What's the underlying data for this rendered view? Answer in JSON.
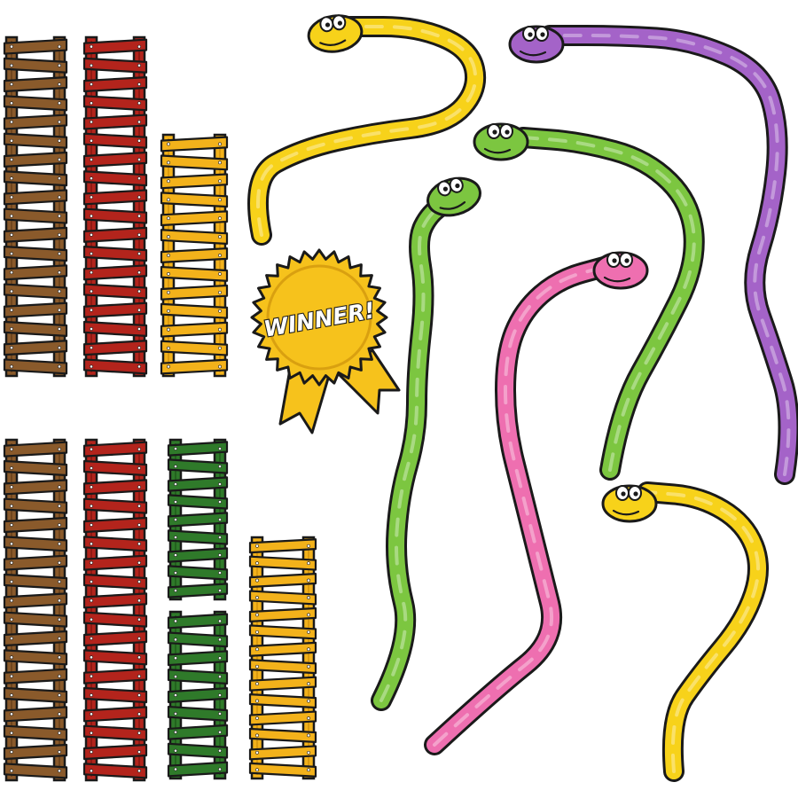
{
  "palette": {
    "outline": "#1a1a1a",
    "ladder_brown": "#8a5a2b",
    "ladder_brown_dark": "#5e3a17",
    "ladder_red": "#b3241c",
    "ladder_red_dark": "#7a130d",
    "ladder_yellow": "#f3b21b",
    "ladder_yellow_dark": "#c98a09",
    "ladder_green": "#2f7a2a",
    "ladder_green_dark": "#1c5218",
    "snake_yellow": "#f7d21a",
    "snake_purple": "#a463c8",
    "snake_green": "#7cc640",
    "snake_pink": "#ee6fb0",
    "badge_gold": "#f6c21c",
    "badge_gold_dark": "#d9a010"
  },
  "ladders": [
    {
      "name": "ladder-brown-top",
      "color": "brown",
      "rungs": 18
    },
    {
      "name": "ladder-red-top",
      "color": "red",
      "rungs": 18
    },
    {
      "name": "ladder-yellow-top",
      "color": "yellow",
      "rungs": 13
    },
    {
      "name": "ladder-brown-bottom",
      "color": "brown",
      "rungs": 18
    },
    {
      "name": "ladder-red-bottom",
      "color": "red",
      "rungs": 18
    },
    {
      "name": "ladder-green-bottom-upper",
      "color": "green",
      "rungs": 9
    },
    {
      "name": "ladder-green-bottom-lower",
      "color": "green",
      "rungs": 9
    },
    {
      "name": "ladder-yellow-bottom",
      "color": "yellow",
      "rungs": 14
    }
  ],
  "snakes": [
    {
      "name": "snake-yellow-top",
      "color": "yellow"
    },
    {
      "name": "snake-purple",
      "color": "purple"
    },
    {
      "name": "snake-green-right",
      "color": "green"
    },
    {
      "name": "snake-green-left",
      "color": "green"
    },
    {
      "name": "snake-pink",
      "color": "pink"
    },
    {
      "name": "snake-yellow-bottom",
      "color": "yellow"
    }
  ],
  "badge": {
    "text": "WINNER!"
  }
}
